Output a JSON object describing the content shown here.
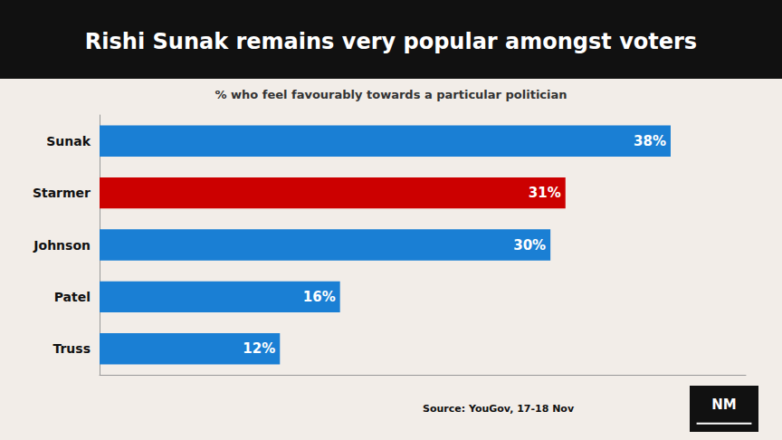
{
  "chart_data": {
    "type": "bar",
    "orientation": "horizontal",
    "title": "Rishi Sunak remains very popular amongst voters",
    "subtitle": "% who feel favourably towards a particular politician",
    "annotations": [
      "Source: YouGov, 17-18 Nov",
      "NM"
    ],
    "categories": [
      "Sunak",
      "Starmer",
      "Johnson",
      "Patel",
      "Truss"
    ],
    "values": [
      38,
      31,
      30,
      16,
      12
    ],
    "value_labels": [
      "38%",
      "31%",
      "30%",
      "16%",
      "12%"
    ],
    "colors": [
      "#1a7fd4",
      "#cc0000",
      "#1a7fd4",
      "#1a7fd4",
      "#1a7fd4"
    ],
    "xlim": [
      0,
      43
    ],
    "data_labels": true,
    "tick_labels": "y",
    "grid": false
  }
}
